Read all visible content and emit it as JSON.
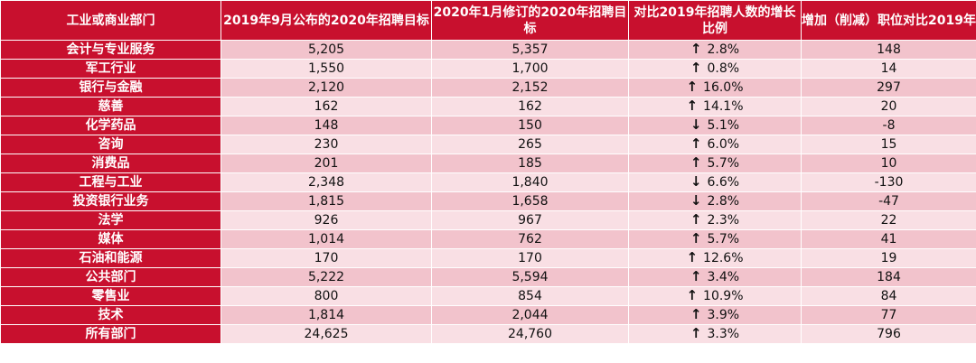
{
  "headers": {
    "sector": "工业或商业部门",
    "sep2019": "2019年9月公布的2020年招聘目标",
    "jan2020": "2020年1月修订的2020年招聘目标",
    "growth": "对比2019年招聘人数的增长比例",
    "change": "增加（削减）职位对比2019年"
  },
  "rows": [
    {
      "sector": "会计与专业服务",
      "sep2019": "5,205",
      "jan2020": "5,357",
      "arrow": "↑",
      "growth": "2.8%",
      "change": "148"
    },
    {
      "sector": "军工行业",
      "sep2019": "1,550",
      "jan2020": "1,700",
      "arrow": "↑",
      "growth": "0.8%",
      "change": "14"
    },
    {
      "sector": "银行与金融",
      "sep2019": "2,120",
      "jan2020": "2,152",
      "arrow": "↑",
      "growth": "16.0%",
      "change": "297"
    },
    {
      "sector": "慈善",
      "sep2019": "162",
      "jan2020": "162",
      "arrow": "↑",
      "growth": "14.1%",
      "change": "20"
    },
    {
      "sector": "化学药品",
      "sep2019": "148",
      "jan2020": "150",
      "arrow": "↓",
      "growth": "5.1%",
      "change": "-8"
    },
    {
      "sector": "咨询",
      "sep2019": "230",
      "jan2020": "265",
      "arrow": "↑",
      "growth": "6.0%",
      "change": "15"
    },
    {
      "sector": "消费品",
      "sep2019": "201",
      "jan2020": "185",
      "arrow": "↑",
      "growth": "5.7%",
      "change": "10"
    },
    {
      "sector": "工程与工业",
      "sep2019": "2,348",
      "jan2020": "1,840",
      "arrow": "↓",
      "growth": "6.6%",
      "change": "-130"
    },
    {
      "sector": "投资银行业务",
      "sep2019": "1,815",
      "jan2020": "1,658",
      "arrow": "↓",
      "growth": "2.8%",
      "change": "-47"
    },
    {
      "sector": "法学",
      "sep2019": "926",
      "jan2020": "967",
      "arrow": "↑",
      "growth": "2.3%",
      "change": "22"
    },
    {
      "sector": "媒体",
      "sep2019": "1,014",
      "jan2020": "762",
      "arrow": "↑",
      "growth": "5.7%",
      "change": "41"
    },
    {
      "sector": "石油和能源",
      "sep2019": "170",
      "jan2020": "170",
      "arrow": "↑",
      "growth": "12.6%",
      "change": "19"
    },
    {
      "sector": "公共部门",
      "sep2019": "5,222",
      "jan2020": "5,594",
      "arrow": "↑",
      "growth": "3.4%",
      "change": "184"
    },
    {
      "sector": "零售业",
      "sep2019": "800",
      "jan2020": "854",
      "arrow": "↑",
      "growth": "10.9%",
      "change": "84"
    },
    {
      "sector": "技术",
      "sep2019": "1,814",
      "jan2020": "2,044",
      "arrow": "↑",
      "growth": "3.9%",
      "change": "77"
    },
    {
      "sector": "所有部门",
      "sep2019": "24,625",
      "jan2020": "24,760",
      "arrow": "↑",
      "growth": "3.3%",
      "change": "796"
    }
  ]
}
